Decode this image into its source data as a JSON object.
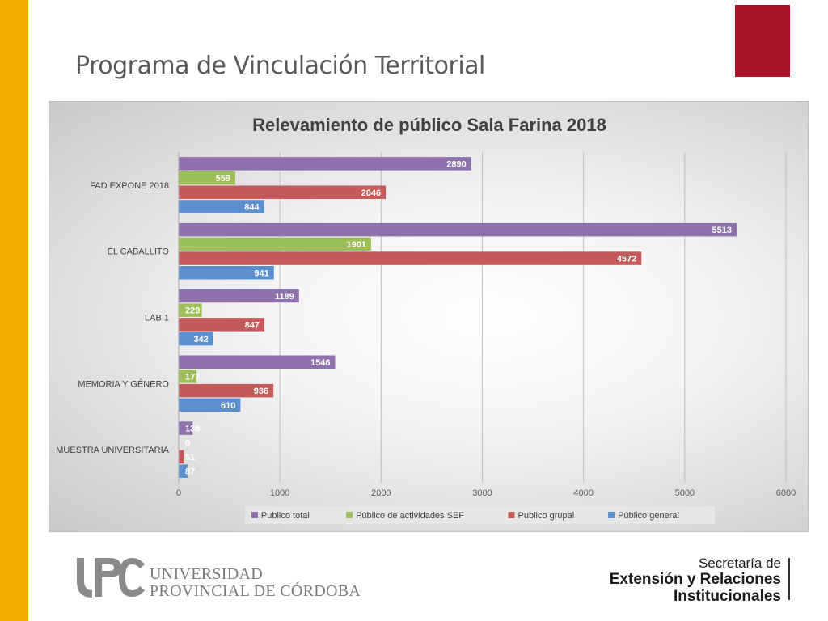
{
  "slide": {
    "title": "Programa de Vinculación Territorial",
    "colors": {
      "side_bar": "#f0ad00",
      "red_square": "#a8132a"
    }
  },
  "footer": {
    "univ_logo_mark": "UPC",
    "univ_line1": "UNIVERSIDAD",
    "univ_line2": "PROVINCIAL DE CÓRDOBA",
    "secretaria_line1": "Secretaría de",
    "secretaria_line2": "Extensión y Relaciones",
    "secretaria_line3": "Institucionales"
  },
  "chart_data": {
    "type": "bar",
    "orientation": "horizontal",
    "title": "Relevamiento de público Sala Farina 2018",
    "categories": [
      "FAD EXPONE 2018",
      "EL CABALLITO",
      "LAB 1",
      "MEMORIA Y GÉNERO",
      "MUESTRA UNIVERSITARIA"
    ],
    "series": [
      {
        "name": "Publico total",
        "color": "#8e72ac",
        "values": [
          2890,
          5513,
          1189,
          1546,
          138
        ]
      },
      {
        "name": "Público de actividades SEF",
        "color": "#9dbf59",
        "values": [
          559,
          1901,
          229,
          177,
          0
        ]
      },
      {
        "name": "Publico grupal",
        "color": "#c55a5a",
        "values": [
          2046,
          4572,
          847,
          936,
          51
        ]
      },
      {
        "name": "Público general",
        "color": "#5b8fcf",
        "values": [
          844,
          941,
          342,
          610,
          87
        ]
      }
    ],
    "xlim": [
      0,
      6000
    ],
    "xticks": [
      0,
      1000,
      2000,
      3000,
      4000,
      5000,
      6000
    ],
    "grid": "vertical",
    "legend_position": "bottom",
    "data_labels": true
  }
}
